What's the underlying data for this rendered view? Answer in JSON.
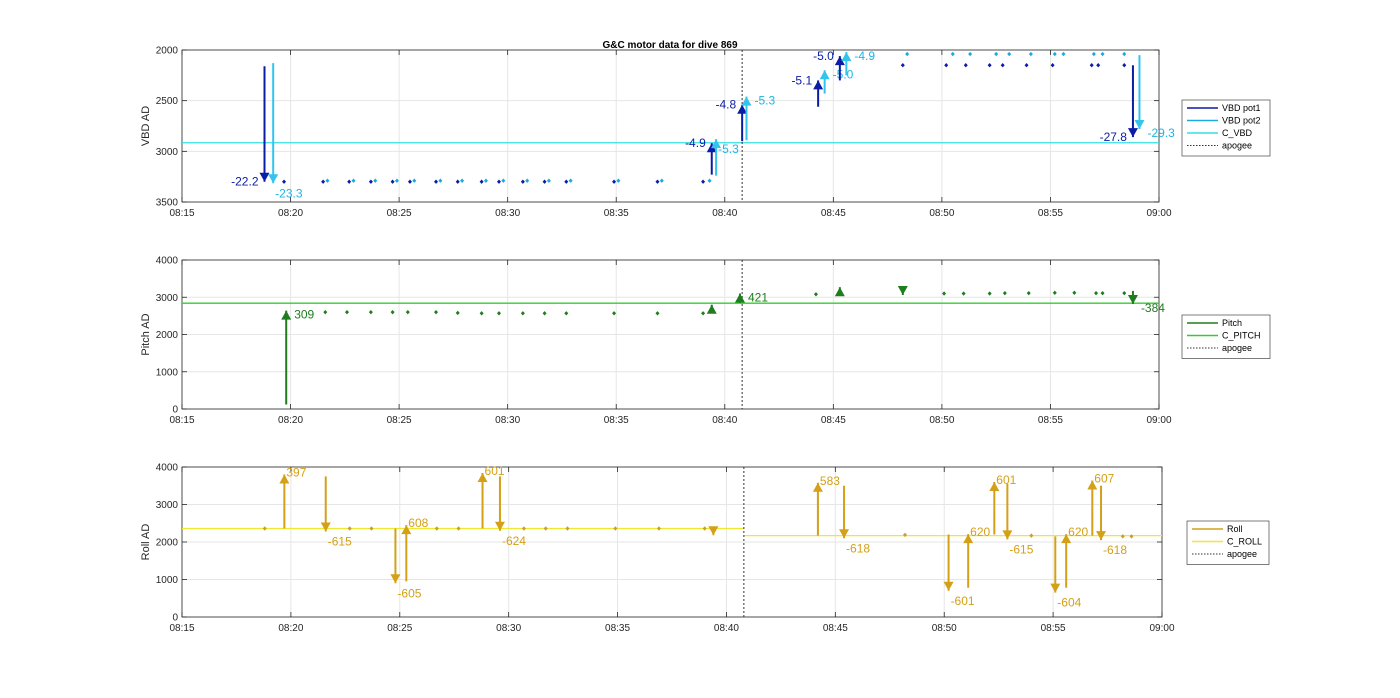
{
  "figure": {
    "title": "G&C motor data for dive 869"
  },
  "chart_data": [
    {
      "type": "scatter",
      "id": "vbd",
      "ylabel": "VBD AD",
      "xlim": [
        "08:15",
        "09:00"
      ],
      "ylim": [
        2000,
        3500
      ],
      "y_reversed": true,
      "yticks": [
        2000,
        2500,
        3000,
        3500
      ],
      "xticks": [
        "08:15",
        "08:20",
        "08:25",
        "08:30",
        "08:35",
        "08:40",
        "08:45",
        "08:50",
        "08:55",
        "09:00"
      ],
      "grid": true,
      "apogee": "08:40.8",
      "lines": [
        {
          "name": "C_VBD",
          "y": 2915,
          "color": "#33e0e0"
        }
      ],
      "legend": [
        {
          "label": "VBD pot1",
          "color": "#0b1ca6",
          "style": "solid"
        },
        {
          "label": "VBD pot2",
          "color": "#1aa9e0",
          "style": "solid"
        },
        {
          "label": "C_VBD",
          "color": "#33e0e0",
          "style": "solid"
        },
        {
          "label": "apogee",
          "color": "#333333",
          "style": "dotted"
        }
      ],
      "series": [
        {
          "name": "VBD pot1",
          "color": "#0b1ca6",
          "points": [
            [
              "08:19.7",
              3300
            ],
            [
              "08:21.5",
              3300
            ],
            [
              "08:22.7",
              3300
            ],
            [
              "08:23.7",
              3300
            ],
            [
              "08:24.7",
              3300
            ],
            [
              "08:25.5",
              3300
            ],
            [
              "08:26.7",
              3300
            ],
            [
              "08:27.7",
              3300
            ],
            [
              "08:28.8",
              3300
            ],
            [
              "08:29.6",
              3300
            ],
            [
              "08:30.7",
              3300
            ],
            [
              "08:31.7",
              3300
            ],
            [
              "08:32.7",
              3300
            ],
            [
              "08:34.9",
              3300
            ],
            [
              "08:36.9",
              3300
            ],
            [
              "08:39.0",
              3300
            ],
            [
              "08:48.2",
              2150
            ],
            [
              "08:50.2",
              2150
            ],
            [
              "08:51.1",
              2150
            ],
            [
              "08:52.2",
              2150
            ],
            [
              "08:52.8",
              2150
            ],
            [
              "08:53.9",
              2150
            ],
            [
              "08:55.1",
              2150
            ],
            [
              "08:56.9",
              2150
            ],
            [
              "08:57.2",
              2150
            ],
            [
              "08:58.4",
              2150
            ]
          ]
        },
        {
          "name": "VBD pot2",
          "color": "#1aa9e0",
          "points": [
            [
              "08:21.7",
              3290
            ],
            [
              "08:22.9",
              3290
            ],
            [
              "08:23.9",
              3290
            ],
            [
              "08:24.9",
              3290
            ],
            [
              "08:25.7",
              3290
            ],
            [
              "08:26.9",
              3290
            ],
            [
              "08:27.9",
              3290
            ],
            [
              "08:29.0",
              3290
            ],
            [
              "08:29.8",
              3290
            ],
            [
              "08:30.9",
              3290
            ],
            [
              "08:31.9",
              3290
            ],
            [
              "08:32.9",
              3290
            ],
            [
              "08:35.1",
              3290
            ],
            [
              "08:37.1",
              3290
            ],
            [
              "08:39.3",
              3290
            ],
            [
              "08:48.4",
              2040
            ],
            [
              "08:50.5",
              2040
            ],
            [
              "08:51.3",
              2040
            ],
            [
              "08:52.5",
              2040
            ],
            [
              "08:53.1",
              2040
            ],
            [
              "08:54.1",
              2040
            ],
            [
              "08:55.2",
              2040
            ],
            [
              "08:55.6",
              2040
            ],
            [
              "08:57.0",
              2040
            ],
            [
              "08:57.4",
              2040
            ],
            [
              "08:58.4",
              2040
            ]
          ]
        }
      ],
      "arrows": [
        {
          "x": "08:18.8",
          "from": 2160,
          "to": 3300,
          "color": "#0b1ca6",
          "label": "-22.2",
          "label_side": "left",
          "label_color": "#0b1ca6"
        },
        {
          "x": "08:19.2",
          "from": 2130,
          "to": 3315,
          "color": "#33c4ee",
          "label": "-23.3",
          "label_side": "below",
          "label_color": "#1fb5e6"
        },
        {
          "x": "08:39.4",
          "from": 3230,
          "to": 2920,
          "color": "#0b1ca6",
          "label": "-4.9",
          "label_side": "left",
          "label_color": "#0b1ca6"
        },
        {
          "x": "08:39.6",
          "from": 3240,
          "to": 2880,
          "color": "#33c4ee",
          "label": "-5.3",
          "label_side": "right-below",
          "label_color": "#1fb5e6"
        },
        {
          "x": "08:40.8",
          "from": 2900,
          "to": 2540,
          "color": "#0b1ca6",
          "label": "-4.8",
          "label_side": "left",
          "label_color": "#0b1ca6"
        },
        {
          "x": "08:41.0",
          "from": 2890,
          "to": 2460,
          "color": "#33c4ee",
          "label": "-5.3",
          "label_side": "right",
          "label_color": "#1fb5e6"
        },
        {
          "x": "08:44.3",
          "from": 2560,
          "to": 2300,
          "color": "#0b1ca6",
          "label": "-5.1",
          "label_side": "left",
          "label_color": "#0b1ca6"
        },
        {
          "x": "08:44.6",
          "from": 2430,
          "to": 2200,
          "color": "#33c4ee",
          "label": "-5.0",
          "label_side": "right",
          "label_color": "#1fb5e6"
        },
        {
          "x": "08:45.3",
          "from": 2300,
          "to": 2060,
          "color": "#0b1ca6",
          "label": "-5.0",
          "label_side": "left",
          "label_color": "#0b1ca6"
        },
        {
          "x": "08:45.6",
          "from": 2250,
          "to": 2020,
          "color": "#33c4ee",
          "label": "-4.9",
          "label_side": "right",
          "label_color": "#1fb5e6"
        },
        {
          "x": "08:58.8",
          "from": 2150,
          "to": 2860,
          "color": "#0b1ca6",
          "label": "-27.8",
          "label_side": "left",
          "label_color": "#0b1ca6"
        },
        {
          "x": "08:59.1",
          "from": 2050,
          "to": 2780,
          "color": "#33c4ee",
          "label": "-29.3",
          "label_side": "right",
          "label_color": "#1fb5e6"
        }
      ]
    },
    {
      "type": "scatter",
      "id": "pitch",
      "ylabel": "Pitch AD",
      "xlim": [
        "08:15",
        "09:00"
      ],
      "ylim": [
        0,
        4000
      ],
      "y_reversed": false,
      "yticks": [
        0,
        1000,
        2000,
        3000,
        4000
      ],
      "xticks": [
        "08:15",
        "08:20",
        "08:25",
        "08:30",
        "08:35",
        "08:40",
        "08:45",
        "08:50",
        "08:55",
        "09:00"
      ],
      "grid": true,
      "apogee": "08:40.8",
      "lines": [
        {
          "name": "C_PITCH",
          "y": 2840,
          "color": "#33cc33"
        }
      ],
      "legend": [
        {
          "label": "Pitch",
          "color": "#1e7d1e",
          "style": "solid"
        },
        {
          "label": "C_PITCH",
          "color": "#33cc33",
          "style": "solid"
        },
        {
          "label": "apogee",
          "color": "#333333",
          "style": "dotted"
        }
      ],
      "series": [
        {
          "name": "Pitch",
          "color": "#1e7d1e",
          "points": [
            [
              "08:21.6",
              2600
            ],
            [
              "08:22.6",
              2600
            ],
            [
              "08:23.7",
              2600
            ],
            [
              "08:24.7",
              2600
            ],
            [
              "08:25.4",
              2600
            ],
            [
              "08:26.7",
              2600
            ],
            [
              "08:27.7",
              2580
            ],
            [
              "08:28.8",
              2570
            ],
            [
              "08:29.6",
              2570
            ],
            [
              "08:30.7",
              2570
            ],
            [
              "08:31.7",
              2570
            ],
            [
              "08:32.7",
              2570
            ],
            [
              "08:34.9",
              2570
            ],
            [
              "08:36.9",
              2570
            ],
            [
              "08:39.0",
              2570
            ],
            [
              "08:44.2",
              3080
            ],
            [
              "08:50.1",
              3100
            ],
            [
              "08:51.0",
              3100
            ],
            [
              "08:52.2",
              3100
            ],
            [
              "08:52.9",
              3110
            ],
            [
              "08:54.0",
              3110
            ],
            [
              "08:55.2",
              3120
            ],
            [
              "08:56.1",
              3120
            ],
            [
              "08:57.1",
              3110
            ],
            [
              "08:57.4",
              3110
            ],
            [
              "08:58.4",
              3110
            ]
          ]
        }
      ],
      "arrows": [
        {
          "x": "08:19.8",
          "from": 120,
          "to": 2640,
          "color": "#1e7d1e",
          "label": "309",
          "label_side": "right",
          "label_color": "#1e7d1e"
        },
        {
          "x": "08:39.4",
          "from": 2660,
          "to": 2800,
          "color": "#1e7d1e",
          "label": "",
          "label_side": "right",
          "label_color": "#1e7d1e"
        },
        {
          "x": "08:40.7",
          "from": 2850,
          "to": 3100,
          "color": "#1e7d1e",
          "label": "421",
          "label_side": "right",
          "label_color": "#1e7d1e"
        },
        {
          "x": "08:45.3",
          "from": 3050,
          "to": 3270,
          "color": "#1e7d1e",
          "label": "",
          "label_side": "right",
          "label_color": "#1e7d1e"
        },
        {
          "x": "08:48.2",
          "from": 3170,
          "to": 3060,
          "color": "#1e7d1e",
          "label": "",
          "label_side": "right",
          "label_color": "#1e7d1e"
        },
        {
          "x": "08:58.8",
          "from": 3170,
          "to": 2820,
          "color": "#1e7d1e",
          "label": "-384",
          "label_side": "right",
          "label_color": "#1e7d1e"
        }
      ]
    },
    {
      "type": "scatter",
      "id": "roll",
      "ylabel": "Roll AD",
      "xlim": [
        "08:15",
        "09:00"
      ],
      "ylim": [
        0,
        4000
      ],
      "y_reversed": false,
      "yticks": [
        0,
        1000,
        2000,
        3000,
        4000
      ],
      "xticks": [
        "08:15",
        "08:20",
        "08:25",
        "08:30",
        "08:35",
        "08:40",
        "08:45",
        "08:50",
        "08:55",
        "09:00"
      ],
      "grid": true,
      "apogee": "08:40.8",
      "lines": [
        {
          "name": "C_ROLL",
          "y": 2360,
          "color": "#f0e830",
          "x_from": "08:15",
          "x_to": "08:40.8"
        },
        {
          "name": "C_ROLL",
          "y": 2170,
          "color": "#f0e830",
          "x_from": "08:40.8",
          "x_to": "09:00"
        }
      ],
      "legend": [
        {
          "label": "Roll",
          "color": "#d4a017",
          "style": "solid"
        },
        {
          "label": "C_ROLL",
          "color": "#f0e830",
          "style": "solid"
        },
        {
          "label": "apogee",
          "color": "#333333",
          "style": "dotted"
        }
      ],
      "series": [
        {
          "name": "Roll",
          "color": "#c8a030",
          "points": [
            [
              "08:18.8",
              2360
            ],
            [
              "08:22.7",
              2360
            ],
            [
              "08:23.7",
              2360
            ],
            [
              "08:26.7",
              2360
            ],
            [
              "08:27.7",
              2360
            ],
            [
              "08:30.7",
              2360
            ],
            [
              "08:31.7",
              2360
            ],
            [
              "08:32.7",
              2360
            ],
            [
              "08:34.9",
              2360
            ],
            [
              "08:36.9",
              2360
            ],
            [
              "08:39.0",
              2360
            ],
            [
              "08:48.2",
              2190
            ],
            [
              "08:54.0",
              2170
            ],
            [
              "08:58.2",
              2150
            ],
            [
              "08:58.6",
              2150
            ]
          ]
        }
      ],
      "arrows": [
        {
          "x": "08:19.7",
          "from": 2360,
          "to": 3800,
          "color": "#d4a017",
          "label": "397",
          "label_side": "right-top",
          "label_color": "#d4a017"
        },
        {
          "x": "08:21.6",
          "from": 3750,
          "to": 2280,
          "color": "#d4a017",
          "label": "-615",
          "label_side": "right-below",
          "label_color": "#d4a017"
        },
        {
          "x": "08:24.8",
          "from": 2360,
          "to": 900,
          "color": "#d4a017",
          "label": "-605",
          "label_side": "right-below",
          "label_color": "#d4a017"
        },
        {
          "x": "08:25.3",
          "from": 950,
          "to": 2450,
          "color": "#d4a017",
          "label": "608",
          "label_side": "right-top",
          "label_color": "#d4a017"
        },
        {
          "x": "08:28.8",
          "from": 2360,
          "to": 3840,
          "color": "#d4a017",
          "label": "601",
          "label_side": "right-top",
          "label_color": "#d4a017"
        },
        {
          "x": "08:29.6",
          "from": 3750,
          "to": 2300,
          "color": "#d4a017",
          "label": "-624",
          "label_side": "right-below",
          "label_color": "#d4a017"
        },
        {
          "x": "08:39.4",
          "from": 2330,
          "to": 2180,
          "color": "#d4a017",
          "label": "",
          "label_side": "right",
          "label_color": "#d4a017"
        },
        {
          "x": "08:44.2",
          "from": 2170,
          "to": 3580,
          "color": "#d4a017",
          "label": "583",
          "label_side": "right-top",
          "label_color": "#d4a017"
        },
        {
          "x": "08:45.4",
          "from": 3500,
          "to": 2100,
          "color": "#d4a017",
          "label": "-618",
          "label_side": "right-below",
          "label_color": "#d4a017"
        },
        {
          "x": "08:50.2",
          "from": 2200,
          "to": 700,
          "color": "#d4a017",
          "label": "-601",
          "label_side": "right-below",
          "label_color": "#d4a017"
        },
        {
          "x": "08:51.1",
          "from": 780,
          "to": 2210,
          "color": "#d4a017",
          "label": "620",
          "label_side": "right-top",
          "label_color": "#d4a017"
        },
        {
          "x": "08:52.3",
          "from": 2200,
          "to": 3600,
          "color": "#d4a017",
          "label": "601",
          "label_side": "right-top",
          "label_color": "#d4a017"
        },
        {
          "x": "08:52.9",
          "from": 3550,
          "to": 2070,
          "color": "#d4a017",
          "label": "-615",
          "label_side": "right-below",
          "label_color": "#d4a017"
        },
        {
          "x": "08:55.1",
          "from": 2150,
          "to": 650,
          "color": "#d4a017",
          "label": "-604",
          "label_side": "right-below",
          "label_color": "#d4a017"
        },
        {
          "x": "08:55.6",
          "from": 780,
          "to": 2210,
          "color": "#d4a017",
          "label": "620",
          "label_side": "right-top",
          "label_color": "#d4a017"
        },
        {
          "x": "08:56.8",
          "from": 2170,
          "to": 3640,
          "color": "#d4a017",
          "label": "607",
          "label_side": "right-top",
          "label_color": "#d4a017"
        },
        {
          "x": "08:57.2",
          "from": 3500,
          "to": 2050,
          "color": "#d4a017",
          "label": "-618",
          "label_side": "right-below",
          "label_color": "#d4a017"
        }
      ]
    }
  ]
}
